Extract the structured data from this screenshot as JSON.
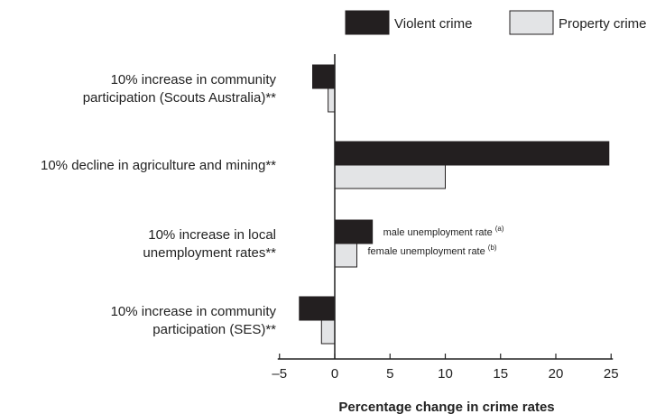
{
  "chart_data": {
    "type": "bar",
    "orientation": "horizontal",
    "xlabel": "Percentage change in crime rates",
    "xlim": [
      -5,
      25
    ],
    "xticks": [
      -5,
      0,
      5,
      10,
      15,
      20,
      25
    ],
    "xtick_labels": [
      "–5",
      "0",
      "5",
      "10",
      "15",
      "20",
      "25"
    ],
    "grid": false,
    "legend_position": "top-right",
    "categories": [
      [
        "10% increase in community",
        "participation (Scouts Australia)**"
      ],
      [
        "10% decline in agriculture and mining**"
      ],
      [
        "10% increase in local",
        "unemployment rates**"
      ],
      [
        "10% increase in community",
        "participation (SES)**"
      ]
    ],
    "series": [
      {
        "name": "Violent crime",
        "color": "#231f20",
        "values": [
          -2.0,
          24.8,
          3.4,
          -3.2
        ]
      },
      {
        "name": "Property crime",
        "color": "#e3e4e6",
        "values": [
          -0.6,
          10.0,
          2.0,
          -1.2
        ]
      }
    ],
    "annotations": [
      {
        "category_index": 2,
        "series_index": 0,
        "text": "male unemployment rate",
        "superscript": "(a)"
      },
      {
        "category_index": 2,
        "series_index": 1,
        "text": "female unemployment rate",
        "superscript": "(b)"
      }
    ]
  }
}
